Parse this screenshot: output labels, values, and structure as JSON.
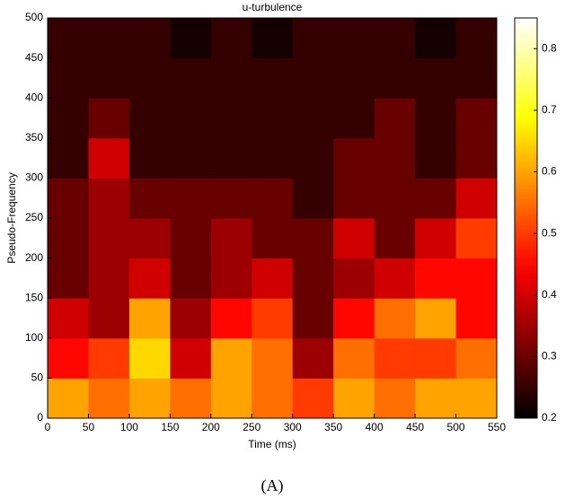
{
  "chart_data": {
    "type": "heatmap",
    "title": "u-turbulence",
    "x_label": "Time (ms)",
    "y_label": "Pseudo-Frequency",
    "caption": "(A)",
    "x_bins": [
      0,
      50,
      100,
      150,
      200,
      250,
      300,
      350,
      400,
      450,
      500,
      550
    ],
    "y_bins": [
      0,
      50,
      100,
      150,
      200,
      250,
      300,
      350,
      400,
      450,
      500
    ],
    "z": [
      [
        0.6,
        0.55,
        0.6,
        0.55,
        0.6,
        0.55,
        0.5,
        0.6,
        0.55,
        0.6,
        0.6
      ],
      [
        0.45,
        0.5,
        0.65,
        0.4,
        0.6,
        0.55,
        0.35,
        0.55,
        0.5,
        0.5,
        0.55
      ],
      [
        0.4,
        0.35,
        0.6,
        0.35,
        0.45,
        0.5,
        0.3,
        0.45,
        0.55,
        0.6,
        0.45
      ],
      [
        0.3,
        0.35,
        0.4,
        0.3,
        0.35,
        0.4,
        0.3,
        0.35,
        0.4,
        0.45,
        0.45
      ],
      [
        0.3,
        0.35,
        0.35,
        0.3,
        0.35,
        0.3,
        0.3,
        0.4,
        0.3,
        0.4,
        0.5
      ],
      [
        0.3,
        0.35,
        0.3,
        0.3,
        0.3,
        0.3,
        0.25,
        0.3,
        0.3,
        0.3,
        0.4
      ],
      [
        0.25,
        0.4,
        0.25,
        0.25,
        0.25,
        0.25,
        0.25,
        0.3,
        0.3,
        0.25,
        0.3
      ],
      [
        0.25,
        0.3,
        0.25,
        0.25,
        0.25,
        0.25,
        0.25,
        0.25,
        0.3,
        0.25,
        0.3
      ],
      [
        0.25,
        0.25,
        0.25,
        0.25,
        0.25,
        0.25,
        0.25,
        0.25,
        0.25,
        0.25,
        0.25
      ],
      [
        0.25,
        0.25,
        0.25,
        0.22,
        0.25,
        0.22,
        0.25,
        0.25,
        0.25,
        0.22,
        0.25
      ]
    ],
    "colormap": "hot",
    "xlim": [
      0,
      550
    ],
    "xticks": [
      0,
      50,
      100,
      150,
      200,
      250,
      300,
      350,
      400,
      450,
      500,
      550
    ],
    "ylim": [
      0,
      500
    ],
    "yticks": [
      0,
      50,
      100,
      150,
      200,
      250,
      300,
      350,
      400,
      450,
      500
    ],
    "clim": [
      0.2,
      0.85
    ],
    "cticks": [
      0.2,
      0.3,
      0.4,
      0.5,
      0.6,
      0.7,
      0.8
    ]
  }
}
